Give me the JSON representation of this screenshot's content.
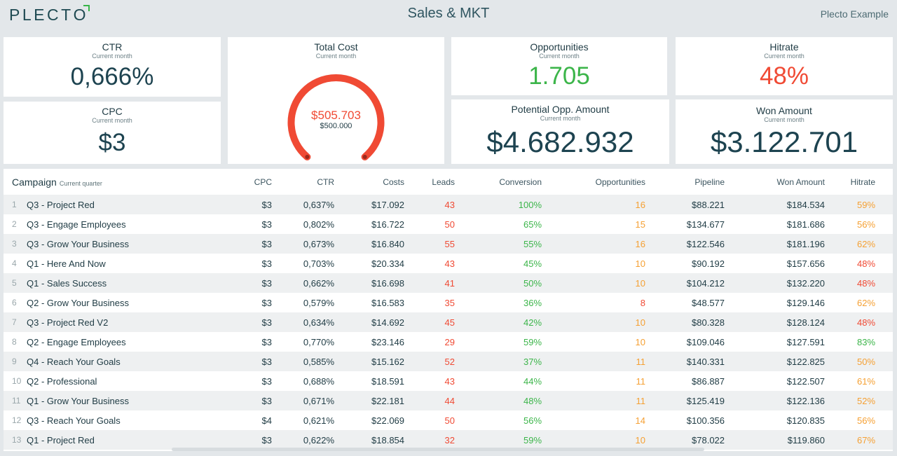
{
  "header": {
    "logo_text": "PLECT",
    "logo_last": "O",
    "title": "Sales & MKT",
    "org": "Plecto Example"
  },
  "kpis": {
    "ctr": {
      "label": "CTR",
      "period": "Current month",
      "value": "0,666%"
    },
    "cpc": {
      "label": "CPC",
      "period": "Current month",
      "value": "$3"
    },
    "total_cost": {
      "label": "Total Cost",
      "period": "Current month",
      "value": "$505.703",
      "target": "$500.000",
      "gauge_fraction": 1.0
    },
    "opportunities": {
      "label": "Opportunities",
      "period": "Current month",
      "value": "1.705"
    },
    "hitrate": {
      "label": "Hitrate",
      "period": "Current month",
      "value": "48%"
    },
    "potential": {
      "label": "Potential Opp. Amount",
      "period": "Current month",
      "value": "$4.682.932"
    },
    "won": {
      "label": "Won Amount",
      "period": "Current month",
      "value": "$3.122.701"
    }
  },
  "colors": {
    "green": "#3cb54a",
    "red": "#f04a34",
    "orange": "#f5a033",
    "navy": "#1d4350"
  },
  "table": {
    "title": "Campaign",
    "period": "Current quarter",
    "columns": [
      "CPC",
      "CTR",
      "Costs",
      "Leads",
      "Conversion",
      "Opportunities",
      "Pipeline",
      "Won Amount",
      "Hitrate"
    ],
    "rows": [
      {
        "idx": "1",
        "name": "Q3 - Project Red",
        "cpc": "$3",
        "ctr": "0,637%",
        "costs": "$17.092",
        "leads": "43",
        "conv": "100%",
        "opp": "16",
        "pipe": "$88.221",
        "won": "$184.534",
        "hit": "59%",
        "hit_color": "orange",
        "opp_color": "orange"
      },
      {
        "idx": "2",
        "name": "Q3 - Engage Employees",
        "cpc": "$3",
        "ctr": "0,802%",
        "costs": "$16.722",
        "leads": "50",
        "conv": "65%",
        "opp": "15",
        "pipe": "$134.677",
        "won": "$181.686",
        "hit": "56%",
        "hit_color": "orange",
        "opp_color": "orange"
      },
      {
        "idx": "3",
        "name": "Q3 - Grow Your Business",
        "cpc": "$3",
        "ctr": "0,673%",
        "costs": "$16.840",
        "leads": "55",
        "conv": "55%",
        "opp": "16",
        "pipe": "$122.546",
        "won": "$181.196",
        "hit": "62%",
        "hit_color": "orange",
        "opp_color": "orange"
      },
      {
        "idx": "4",
        "name": "Q1 - Here And Now",
        "cpc": "$3",
        "ctr": "0,703%",
        "costs": "$20.334",
        "leads": "43",
        "conv": "45%",
        "opp": "10",
        "pipe": "$90.192",
        "won": "$157.656",
        "hit": "48%",
        "hit_color": "red",
        "opp_color": "orange"
      },
      {
        "idx": "5",
        "name": "Q1 - Sales Success",
        "cpc": "$3",
        "ctr": "0,662%",
        "costs": "$16.698",
        "leads": "41",
        "conv": "50%",
        "opp": "10",
        "pipe": "$104.212",
        "won": "$132.220",
        "hit": "48%",
        "hit_color": "red",
        "opp_color": "orange"
      },
      {
        "idx": "6",
        "name": "Q2 - Grow Your Business",
        "cpc": "$3",
        "ctr": "0,579%",
        "costs": "$16.583",
        "leads": "35",
        "conv": "36%",
        "opp": "8",
        "pipe": "$48.577",
        "won": "$129.146",
        "hit": "62%",
        "hit_color": "orange",
        "opp_color": "red"
      },
      {
        "idx": "7",
        "name": "Q3 - Project Red V2",
        "cpc": "$3",
        "ctr": "0,634%",
        "costs": "$14.692",
        "leads": "45",
        "conv": "42%",
        "opp": "10",
        "pipe": "$80.328",
        "won": "$128.124",
        "hit": "48%",
        "hit_color": "red",
        "opp_color": "orange"
      },
      {
        "idx": "8",
        "name": "Q2 - Engage Employees",
        "cpc": "$3",
        "ctr": "0,770%",
        "costs": "$23.146",
        "leads": "29",
        "conv": "59%",
        "opp": "10",
        "pipe": "$109.046",
        "won": "$127.591",
        "hit": "83%",
        "hit_color": "green",
        "opp_color": "orange"
      },
      {
        "idx": "9",
        "name": "Q4 - Reach Your Goals",
        "cpc": "$3",
        "ctr": "0,585%",
        "costs": "$15.162",
        "leads": "52",
        "conv": "37%",
        "opp": "11",
        "pipe": "$140.331",
        "won": "$122.825",
        "hit": "50%",
        "hit_color": "orange",
        "opp_color": "orange"
      },
      {
        "idx": "10",
        "name": "Q2 - Professional",
        "cpc": "$3",
        "ctr": "0,688%",
        "costs": "$18.591",
        "leads": "43",
        "conv": "44%",
        "opp": "11",
        "pipe": "$86.887",
        "won": "$122.507",
        "hit": "61%",
        "hit_color": "orange",
        "opp_color": "orange"
      },
      {
        "idx": "11",
        "name": "Q1 - Grow Your Business",
        "cpc": "$3",
        "ctr": "0,671%",
        "costs": "$22.181",
        "leads": "44",
        "conv": "48%",
        "opp": "11",
        "pipe": "$125.419",
        "won": "$122.136",
        "hit": "52%",
        "hit_color": "orange",
        "opp_color": "orange"
      },
      {
        "idx": "12",
        "name": "Q3 - Reach Your Goals",
        "cpc": "$4",
        "ctr": "0,621%",
        "costs": "$22.069",
        "leads": "50",
        "conv": "56%",
        "opp": "14",
        "pipe": "$100.356",
        "won": "$120.835",
        "hit": "56%",
        "hit_color": "orange",
        "opp_color": "orange"
      },
      {
        "idx": "13",
        "name": "Q1 - Project Red",
        "cpc": "$3",
        "ctr": "0,622%",
        "costs": "$18.854",
        "leads": "32",
        "conv": "59%",
        "opp": "10",
        "pipe": "$78.022",
        "won": "$119.860",
        "hit": "67%",
        "hit_color": "orange",
        "opp_color": "orange"
      }
    ]
  }
}
